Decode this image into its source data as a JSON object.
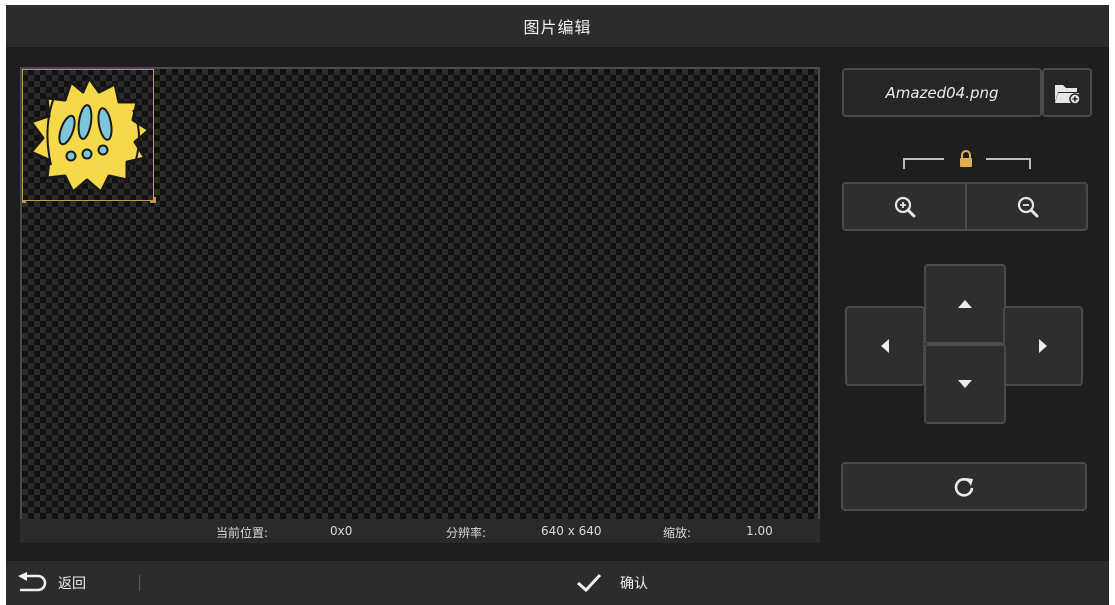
{
  "window": {
    "title": "图片编辑"
  },
  "canvas": {
    "image_layer": "Amazed sticker (!!!)"
  },
  "status": {
    "position_label": "当前位置:",
    "position_value": "0x0",
    "resolution_label": "分辨率:",
    "resolution_value": "640 x 640",
    "scale_label": "缩放:",
    "scale_value": "1.00"
  },
  "panel": {
    "file_name": "Amazed04.png",
    "folder_icon": "folder-add-icon",
    "lock_icon": "lock-icon",
    "zoom_in_icon": "zoom-in-icon",
    "zoom_out_icon": "zoom-out-icon",
    "move_icons": [
      "arrow-up-icon",
      "arrow-left-icon",
      "arrow-right-icon",
      "arrow-down-icon"
    ],
    "reset_icon": "refresh-icon"
  },
  "footer": {
    "back_label": "返回",
    "confirm_label": "确认"
  },
  "colors": {
    "background": "#1e1e1e",
    "bar": "#2c2c2c",
    "border": "#4a4a4a",
    "accent_gold": "#c8964a",
    "sticker_yellow": "#f5d94a",
    "sticker_blue": "#7cc6d8"
  }
}
